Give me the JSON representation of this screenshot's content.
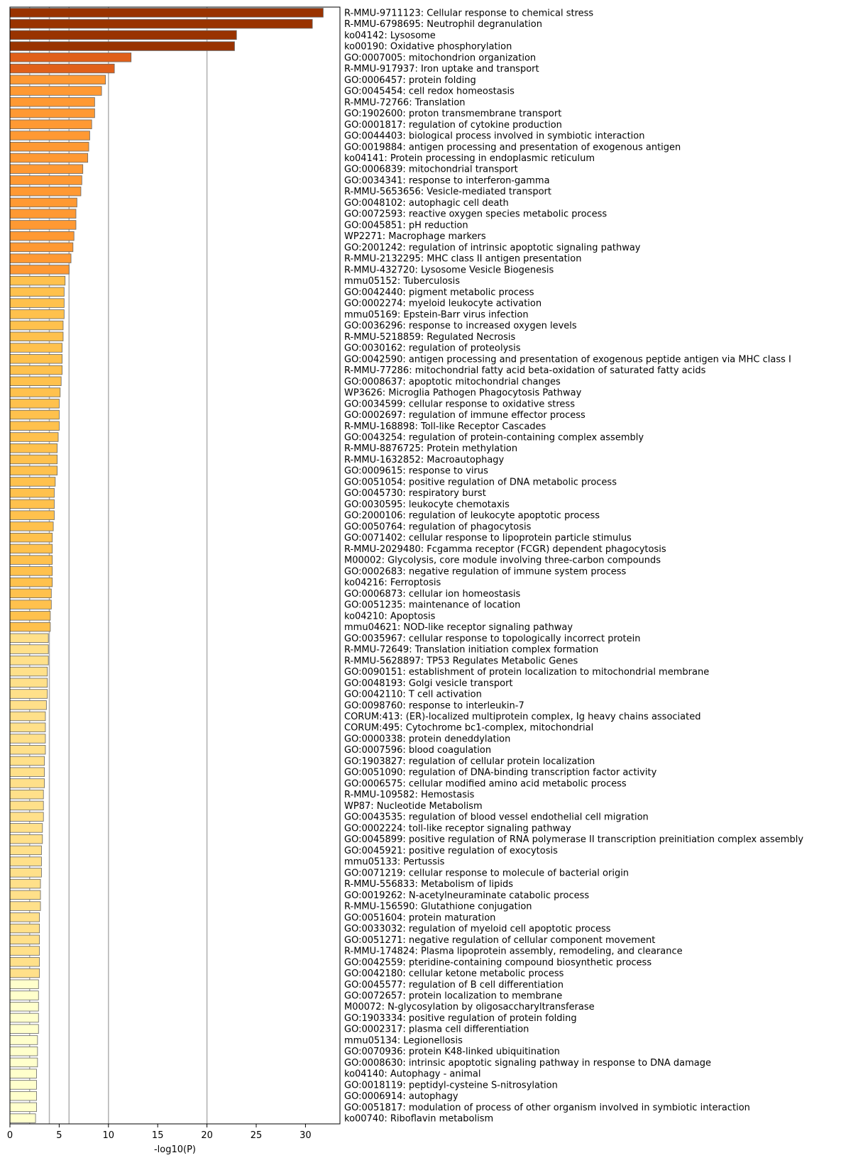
{
  "chart_data": {
    "type": "bar",
    "orientation": "horizontal",
    "xlabel": "-log10(P)",
    "ylabel": "",
    "xlim": [
      0,
      33.5
    ],
    "xticks": [
      0,
      5,
      10,
      15,
      20,
      25,
      30
    ],
    "reference_lines": [
      2,
      4,
      6,
      10,
      20
    ],
    "grid": false,
    "legend": "none",
    "categories": [
      "R-MMU-9711123: Cellular response to chemical stress",
      "R-MMU-6798695: Neutrophil degranulation",
      "ko04142: Lysosome",
      "ko00190: Oxidative phosphorylation",
      "GO:0007005: mitochondrion organization",
      "R-MMU-917937: Iron uptake and transport",
      "GO:0006457: protein folding",
      "GO:0045454: cell redox homeostasis",
      "R-MMU-72766: Translation",
      "GO:1902600: proton transmembrane transport",
      "GO:0001817: regulation of cytokine production",
      "GO:0044403: biological process involved in symbiotic interaction",
      "GO:0019884: antigen processing and presentation of exogenous antigen",
      "ko04141: Protein processing in endoplasmic reticulum",
      "GO:0006839: mitochondrial transport",
      "GO:0034341: response to interferon-gamma",
      "R-MMU-5653656: Vesicle-mediated transport",
      "GO:0048102: autophagic cell death",
      "GO:0072593: reactive oxygen species metabolic process",
      "GO:0045851: pH reduction",
      "WP2271: Macrophage markers",
      "GO:2001242: regulation of intrinsic apoptotic signaling pathway",
      "R-MMU-2132295: MHC class II antigen presentation",
      "R-MMU-432720: Lysosome Vesicle Biogenesis",
      "mmu05152: Tuberculosis",
      "GO:0042440: pigment metabolic process",
      "GO:0002274: myeloid leukocyte activation",
      "mmu05169: Epstein-Barr virus infection",
      "GO:0036296: response to increased oxygen levels",
      "R-MMU-5218859: Regulated Necrosis",
      "GO:0030162: regulation of proteolysis",
      "GO:0042590: antigen processing and presentation of exogenous peptide antigen via MHC class I",
      "R-MMU-77286: mitochondrial fatty acid beta-oxidation of saturated fatty acids",
      "GO:0008637: apoptotic mitochondrial changes",
      "WP3626: Microglia Pathogen Phagocytosis Pathway",
      "GO:0034599: cellular response to oxidative stress",
      "GO:0002697: regulation of immune effector process",
      "R-MMU-168898: Toll-like Receptor Cascades",
      "GO:0043254: regulation of protein-containing complex assembly",
      "R-MMU-8876725: Protein methylation",
      "R-MMU-1632852: Macroautophagy",
      "GO:0009615: response to virus",
      "GO:0051054: positive regulation of DNA metabolic process",
      "GO:0045730: respiratory burst",
      "GO:0030595: leukocyte chemotaxis",
      "GO:2000106: regulation of leukocyte apoptotic process",
      "GO:0050764: regulation of phagocytosis",
      "GO:0071402: cellular response to lipoprotein particle stimulus",
      "R-MMU-2029480: Fcgamma receptor (FCGR) dependent phagocytosis",
      "M00002: Glycolysis, core module involving three-carbon compounds",
      "GO:0002683: negative regulation of immune system process",
      "ko04216: Ferroptosis",
      "GO:0006873: cellular ion homeostasis",
      "GO:0051235: maintenance of location",
      "ko04210: Apoptosis",
      "mmu04621: NOD-like receptor signaling pathway",
      "GO:0035967: cellular response to topologically incorrect protein",
      "R-MMU-72649: Translation initiation complex formation",
      "R-MMU-5628897: TP53 Regulates Metabolic Genes",
      "GO:0090151: establishment of protein localization to mitochondrial membrane",
      "GO:0048193: Golgi vesicle transport",
      "GO:0042110: T cell activation",
      "GO:0098760: response to interleukin-7",
      "CORUM:413: (ER)-localized multiprotein complex, Ig heavy chains associated",
      "CORUM:495: Cytochrome bc1-complex, mitochondrial",
      "GO:0000338: protein deneddylation",
      "GO:0007596: blood coagulation",
      "GO:1903827: regulation of cellular protein localization",
      "GO:0051090: regulation of DNA-binding transcription factor activity",
      "GO:0006575: cellular modified amino acid metabolic process",
      "R-MMU-109582: Hemostasis",
      "WP87: Nucleotide Metabolism",
      "GO:0043535: regulation of blood vessel endothelial cell migration",
      "GO:0002224: toll-like receptor signaling pathway",
      "GO:0045899: positive regulation of RNA polymerase II transcription preinitiation complex assembly",
      "GO:0045921: positive regulation of exocytosis",
      "mmu05133: Pertussis",
      "GO:0071219: cellular response to molecule of bacterial origin",
      "R-MMU-556833: Metabolism of lipids",
      "GO:0019262: N-acetylneuraminate catabolic process",
      "R-MMU-156590: Glutathione conjugation",
      "GO:0051604: protein maturation",
      "GO:0033032: regulation of myeloid cell apoptotic process",
      "GO:0051271: negative regulation of cellular component movement",
      "R-MMU-174824: Plasma lipoprotein assembly, remodeling, and clearance",
      "GO:0042559: pteridine-containing compound biosynthetic process",
      "GO:0042180: cellular ketone metabolic process",
      "GO:0045577: regulation of B cell differentiation",
      "GO:0072657: protein localization to membrane",
      "M00072: N-glycosylation by oligosaccharyltransferase",
      "GO:1903334: positive regulation of protein folding",
      "GO:0002317: plasma cell differentiation",
      "mmu05134: Legionellosis",
      "GO:0070936: protein K48-linked ubiquitination",
      "GO:0008630: intrinsic apoptotic signaling pathway in response to DNA damage",
      "ko04140: Autophagy - animal",
      "GO:0018119: peptidyl-cysteine S-nitrosylation",
      "GO:0006914: autophagy",
      "GO:0051817: modulation of process of other organism involved in symbiotic interaction",
      "ko00740: Riboflavin metabolism"
    ],
    "values": [
      31.8,
      30.7,
      23.0,
      22.8,
      12.3,
      10.6,
      9.7,
      9.3,
      8.6,
      8.6,
      8.3,
      8.1,
      8.0,
      7.9,
      7.4,
      7.3,
      7.2,
      6.8,
      6.7,
      6.7,
      6.5,
      6.4,
      6.2,
      6.0,
      5.6,
      5.5,
      5.5,
      5.5,
      5.4,
      5.4,
      5.3,
      5.3,
      5.3,
      5.2,
      5.1,
      5.0,
      5.0,
      5.0,
      4.9,
      4.8,
      4.8,
      4.8,
      4.6,
      4.5,
      4.5,
      4.5,
      4.4,
      4.3,
      4.3,
      4.3,
      4.3,
      4.3,
      4.2,
      4.2,
      4.1,
      4.1,
      3.9,
      3.9,
      3.9,
      3.8,
      3.8,
      3.8,
      3.7,
      3.6,
      3.6,
      3.6,
      3.6,
      3.5,
      3.5,
      3.5,
      3.4,
      3.4,
      3.4,
      3.3,
      3.3,
      3.2,
      3.2,
      3.2,
      3.1,
      3.1,
      3.1,
      3.0,
      3.0,
      3.0,
      3.0,
      3.0,
      3.0,
      2.9,
      2.9,
      2.9,
      2.9,
      2.9,
      2.8,
      2.8,
      2.8,
      2.7,
      2.7,
      2.7,
      2.7,
      2.6
    ],
    "colors": {
      "tier1": "#993300",
      "tier2": "#e0601a",
      "tier3": "#ff9933",
      "tier4": "#ffc14d",
      "tier5": "#ffe08a",
      "tier6": "#ffffcc",
      "bar_edge": "#666666",
      "reference_line": "#b0b0b0"
    },
    "color_tiers": [
      {
        "min": 20,
        "color": "tier1"
      },
      {
        "min": 10,
        "color": "tier2"
      },
      {
        "min": 6,
        "color": "tier3"
      },
      {
        "min": 4,
        "color": "tier4"
      },
      {
        "min": 3,
        "color": "tier5"
      },
      {
        "min": 0,
        "color": "tier6"
      }
    ]
  }
}
